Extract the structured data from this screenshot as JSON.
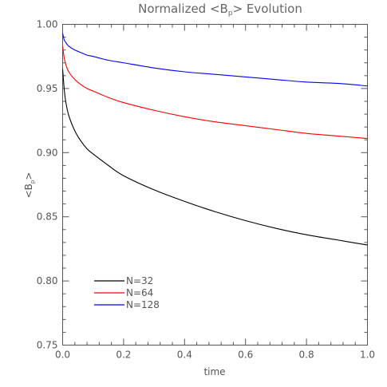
{
  "chart_data": {
    "type": "line",
    "title_main": "Normalized <B",
    "title_sub": "p",
    "title_tail": "> Evolution",
    "xlabel": "time",
    "ylabel_main": "<B",
    "ylabel_sub": "p",
    "ylabel_tail": ">",
    "xlim": [
      0.0,
      1.0
    ],
    "ylim": [
      0.75,
      1.0
    ],
    "xticks": [
      0.0,
      0.2,
      0.4,
      0.6,
      0.8,
      1.0
    ],
    "xtick_labels": [
      "0.0",
      "0.2",
      "0.4",
      "0.6",
      "0.8",
      "1.0"
    ],
    "yticks": [
      0.75,
      0.8,
      0.85,
      0.9,
      0.95,
      1.0
    ],
    "ytick_labels": [
      "0.75",
      "0.80",
      "0.85",
      "0.90",
      "0.95",
      "1.00"
    ],
    "legend_position": "bottom-left",
    "grid": false,
    "series": [
      {
        "name": "N=32",
        "color": "#000000",
        "x": [
          0.0,
          0.005,
          0.01,
          0.02,
          0.04,
          0.06,
          0.08,
          0.1,
          0.15,
          0.2,
          0.3,
          0.4,
          0.5,
          0.6,
          0.7,
          0.8,
          0.9,
          1.0
        ],
        "y": [
          0.965,
          0.95,
          0.94,
          0.929,
          0.917,
          0.909,
          0.903,
          0.899,
          0.89,
          0.882,
          0.871,
          0.862,
          0.854,
          0.847,
          0.841,
          0.836,
          0.832,
          0.828
        ]
      },
      {
        "name": "N=64",
        "color": "#ff0000",
        "x": [
          0.0,
          0.005,
          0.01,
          0.02,
          0.04,
          0.06,
          0.08,
          0.1,
          0.15,
          0.2,
          0.3,
          0.4,
          0.5,
          0.6,
          0.7,
          0.8,
          0.9,
          1.0
        ],
        "y": [
          0.983,
          0.974,
          0.969,
          0.963,
          0.957,
          0.953,
          0.95,
          0.948,
          0.943,
          0.939,
          0.933,
          0.928,
          0.924,
          0.921,
          0.918,
          0.915,
          0.913,
          0.911
        ]
      },
      {
        "name": "N=128",
        "color": "#0000ff",
        "x": [
          0.0,
          0.005,
          0.01,
          0.02,
          0.04,
          0.06,
          0.08,
          0.1,
          0.15,
          0.2,
          0.3,
          0.4,
          0.5,
          0.6,
          0.7,
          0.8,
          0.9,
          1.0
        ],
        "y": [
          0.993,
          0.988,
          0.986,
          0.983,
          0.98,
          0.978,
          0.976,
          0.975,
          0.972,
          0.97,
          0.966,
          0.963,
          0.961,
          0.959,
          0.957,
          0.955,
          0.954,
          0.952
        ]
      }
    ]
  }
}
